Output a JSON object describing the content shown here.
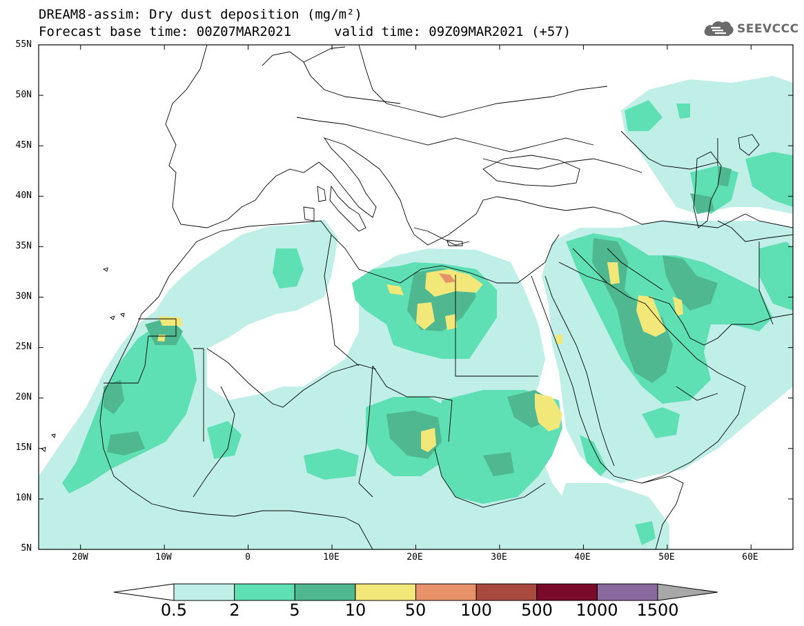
{
  "title": {
    "line1": "DREAM8-assim: Dry dust deposition (mg/m²)",
    "base_time": "Forecast base time: 00Z07MAR2021",
    "valid_time": "valid time: 09Z09MAR2021 (+57)"
  },
  "logo": {
    "text": "SEEVCCC",
    "icon": "cloud-icon"
  },
  "map": {
    "extent": {
      "lon": [
        -25,
        65
      ],
      "lat": [
        5,
        55
      ]
    },
    "lat_labels": [
      "55N",
      "50N",
      "45N",
      "40N",
      "35N",
      "30N",
      "25N",
      "20N",
      "15N",
      "10N",
      "5N"
    ],
    "lon_labels": [
      "20W",
      "10W",
      "0",
      "10E",
      "20E",
      "30E",
      "40E",
      "50E",
      "60E"
    ],
    "levels": [
      {
        "name": "0.5-2",
        "color": "#c0efe8"
      },
      {
        "name": "2-5",
        "color": "#5fe0b4"
      },
      {
        "name": "5-10",
        "color": "#4fb890"
      },
      {
        "name": "10-50",
        "color": "#f2e779"
      },
      {
        "name": "50-100",
        "color": "#e8926a"
      },
      {
        "name": "100-500",
        "color": "#a84a3e"
      },
      {
        "name": "500-1000",
        "color": "#7a0a2a"
      },
      {
        "name": "1000-1500",
        "color": "#8a6a9e"
      },
      {
        "name": ">1500",
        "color": "#a8a8a8"
      }
    ]
  },
  "colorbar": {
    "labels": [
      "0.5",
      "2",
      "5",
      "10",
      "50",
      "100",
      "500",
      "1000",
      "1500"
    ],
    "colors": [
      "#c0efe8",
      "#5fe0b4",
      "#4fb890",
      "#f2e779",
      "#e8926a",
      "#a84a3e",
      "#7a0a2a",
      "#8a6a9e"
    ],
    "under_color": "#ffffff",
    "over_color": "#a8a8a8"
  }
}
